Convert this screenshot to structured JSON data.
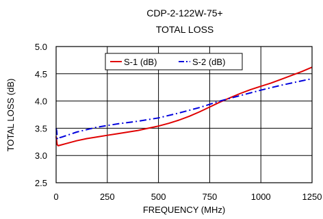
{
  "chart_data": {
    "type": "line",
    "title": "CDP-2-122W-75+",
    "subtitle": "TOTAL LOSS",
    "xlabel": "FREQUENCY (MHz)",
    "ylabel": "TOTAL  LOSS (dB)",
    "xlim": [
      0,
      1250
    ],
    "ylim": [
      2.5,
      5.0
    ],
    "xticks": [
      0,
      250,
      500,
      750,
      1000,
      1250
    ],
    "yticks": [
      2.5,
      3.0,
      3.5,
      4.0,
      4.5,
      5.0
    ],
    "xtick_labels": [
      "0",
      "250",
      "500",
      "750",
      "1000",
      "1250"
    ],
    "ytick_labels": [
      "2.5",
      "3.0",
      "3.5",
      "4.0",
      "4.5",
      "5.0"
    ],
    "grid": true,
    "legend_position": "top-center",
    "series": [
      {
        "name": "S-1 (dB)",
        "color": "#e00000",
        "dash": "solid",
        "x": [
          0,
          5,
          10,
          20,
          50,
          100,
          150,
          200,
          250,
          300,
          350,
          400,
          450,
          500,
          550,
          600,
          650,
          700,
          750,
          800,
          850,
          900,
          950,
          1000,
          1050,
          1100,
          1150,
          1200,
          1250
        ],
        "y": [
          3.35,
          3.2,
          3.18,
          3.19,
          3.22,
          3.27,
          3.31,
          3.34,
          3.37,
          3.4,
          3.43,
          3.46,
          3.5,
          3.54,
          3.59,
          3.65,
          3.72,
          3.8,
          3.89,
          3.98,
          4.06,
          4.14,
          4.21,
          4.27,
          4.33,
          4.4,
          4.47,
          4.54,
          4.62
        ]
      },
      {
        "name": "S-2 (dB)",
        "color": "#0000dd",
        "dash": "dashdot",
        "x": [
          0,
          3,
          6,
          10,
          30,
          100,
          200,
          300,
          400,
          500,
          600,
          700,
          800,
          900,
          1000,
          1100,
          1200,
          1250
        ],
        "y": [
          3.5,
          3.45,
          3.3,
          3.32,
          3.34,
          3.43,
          3.52,
          3.58,
          3.63,
          3.69,
          3.78,
          3.88,
          4.0,
          4.1,
          4.2,
          4.29,
          4.37,
          4.41
        ]
      }
    ]
  }
}
